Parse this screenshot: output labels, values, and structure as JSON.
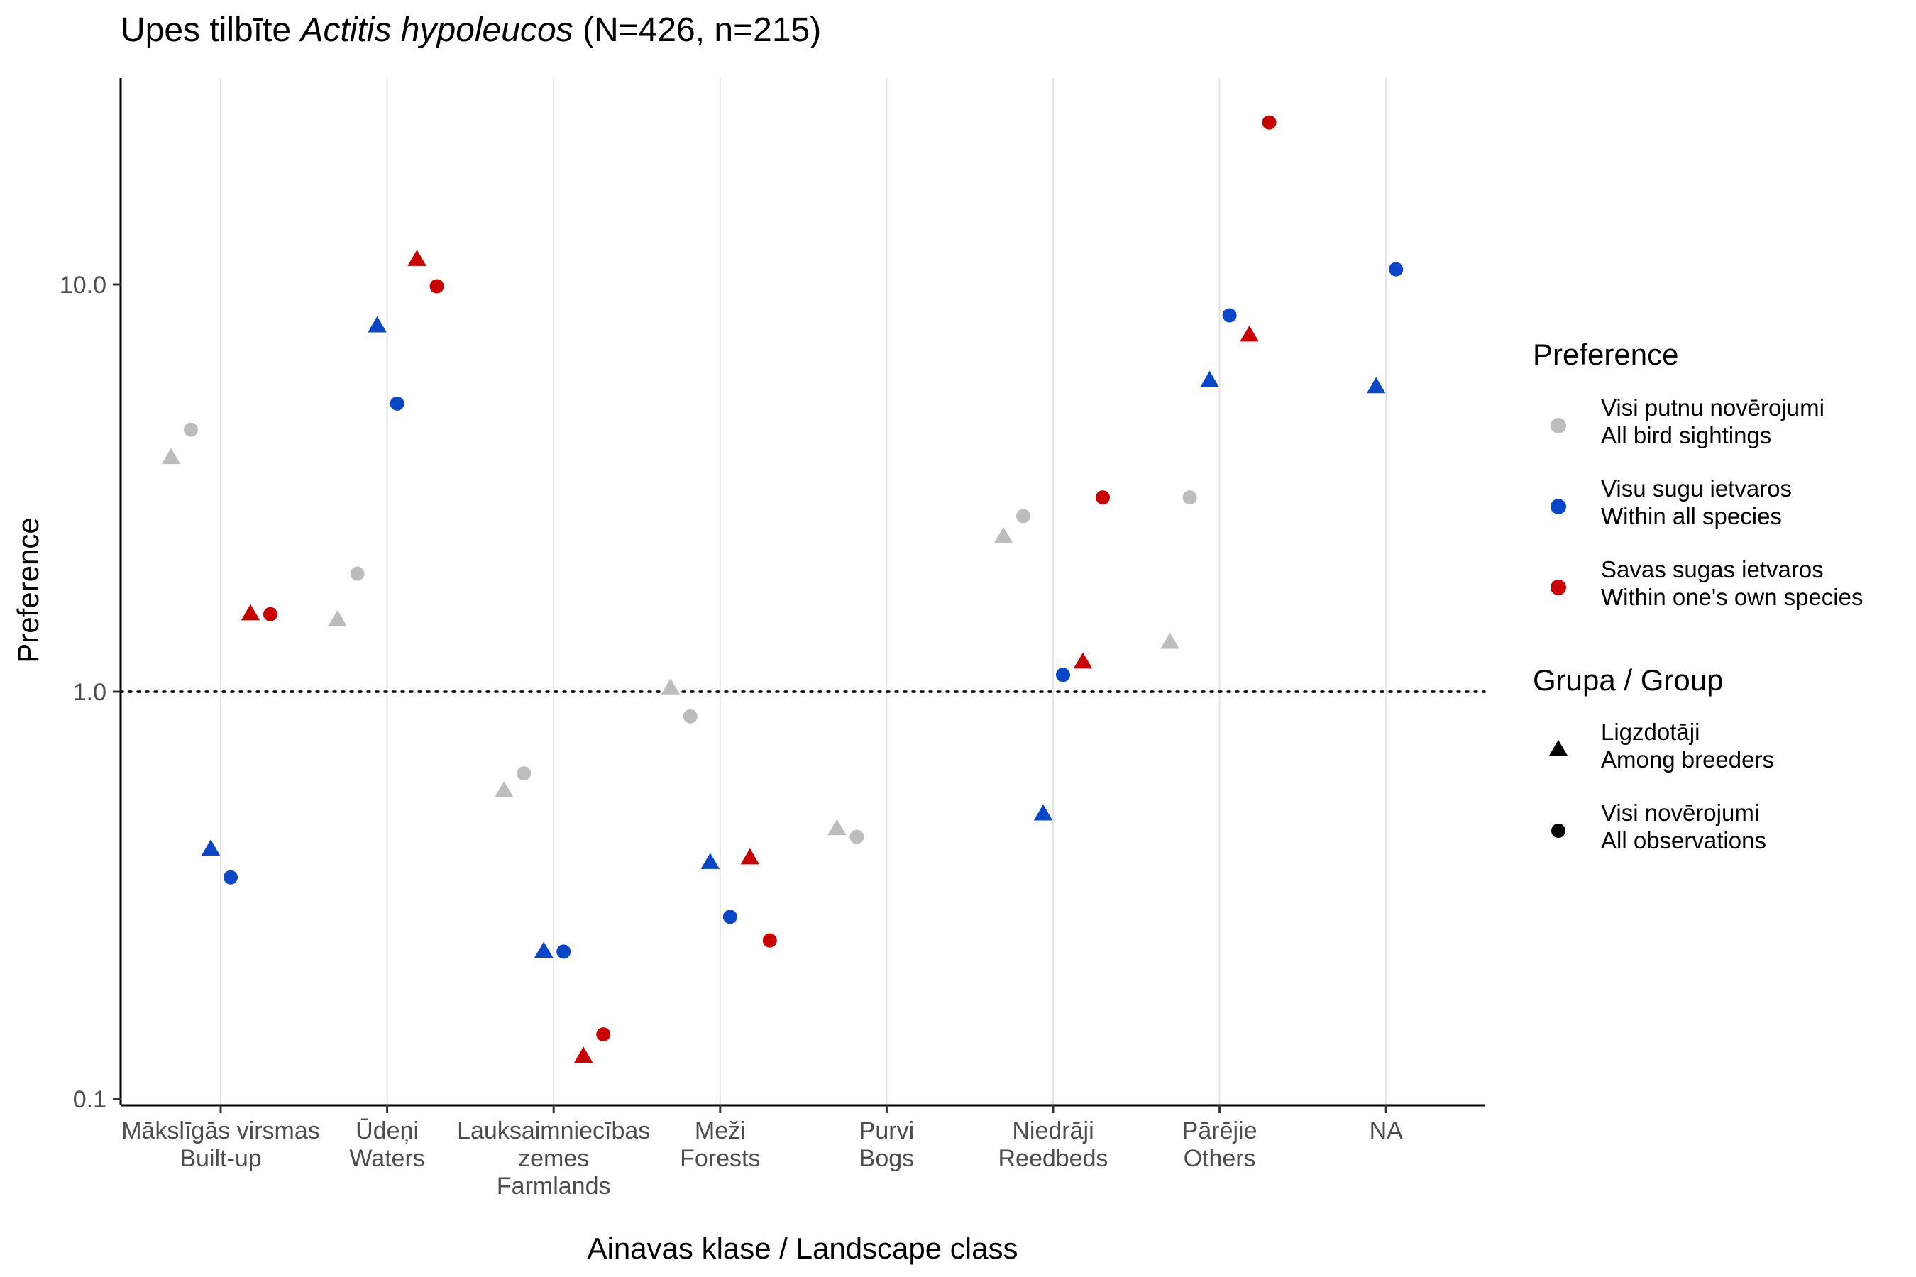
{
  "chart_data": {
    "type": "scatter",
    "title": {
      "prefix": "Upes tilbīte ",
      "species": "Actitis hypoleucos",
      "suffix": " (N=426, n=215)"
    },
    "xlabel": "Ainavas klase / Landscape class",
    "ylabel": "Preference",
    "y_scale": "log10",
    "ylim": [
      0.095,
      30
    ],
    "y_ticks": [
      {
        "value": 0.1,
        "label": "0.1"
      },
      {
        "value": 1,
        "label": "1.0"
      },
      {
        "value": 10,
        "label": "10.0"
      }
    ],
    "reference_line": {
      "value": 1,
      "style": "dotted"
    },
    "categories": [
      {
        "lines": [
          "Mākslīgās virsmas",
          "Built-up"
        ]
      },
      {
        "lines": [
          "Ūdeņi",
          "Waters"
        ]
      },
      {
        "lines": [
          "Lauksaimniecības",
          "zemes",
          "Farmlands"
        ]
      },
      {
        "lines": [
          "Meži",
          "Forests"
        ]
      },
      {
        "lines": [
          "Purvi",
          "Bogs"
        ]
      },
      {
        "lines": [
          "Niedrāji",
          "Reedbeds"
        ]
      },
      {
        "lines": [
          "Pārējie",
          "Others"
        ]
      },
      {
        "lines": [
          "NA"
        ]
      }
    ],
    "grid": {
      "vertical_major": true,
      "horizontal": false
    },
    "legend": {
      "placement": "right",
      "preference": {
        "title": "Preference",
        "items": [
          {
            "key": "all_birds",
            "line1": "Visi putnu novērojumi",
            "line2": "All bird sightings",
            "color": "#bdbdbd"
          },
          {
            "key": "all_species",
            "line1": "Visu sugu ietvaros",
            "line2": "Within all species",
            "color": "#0a47c8"
          },
          {
            "key": "own_species",
            "line1": "Savas sugas ietvaros",
            "line2": "Within one's own species",
            "color": "#c80000"
          }
        ]
      },
      "group": {
        "title": "Grupa / Group",
        "items": [
          {
            "key": "breeders",
            "line1": "Ligzdotāji",
            "line2": "Among breeders",
            "shape": "triangle"
          },
          {
            "key": "all_obs",
            "line1": "Visi novērojumi",
            "line2": "All observations",
            "shape": "circle"
          }
        ]
      }
    },
    "series": [
      {
        "preference": "all_birds",
        "group": "breeders",
        "values": [
          3.75,
          1.5,
          0.57,
          1.02,
          0.46,
          2.4,
          1.32,
          null
        ]
      },
      {
        "preference": "all_birds",
        "group": "all_obs",
        "values": [
          4.4,
          1.95,
          0.63,
          0.87,
          0.44,
          2.7,
          3.0,
          null
        ]
      },
      {
        "preference": "all_species",
        "group": "breeders",
        "values": [
          0.41,
          7.9,
          0.23,
          0.38,
          null,
          0.5,
          5.8,
          5.6
        ]
      },
      {
        "preference": "all_species",
        "group": "all_obs",
        "values": [
          0.35,
          5.1,
          0.23,
          0.28,
          null,
          1.1,
          8.4,
          10.9
        ]
      },
      {
        "preference": "own_species",
        "group": "breeders",
        "values": [
          1.55,
          11.5,
          0.127,
          0.39,
          null,
          1.18,
          7.5,
          null
        ]
      },
      {
        "preference": "own_species",
        "group": "all_obs",
        "values": [
          1.55,
          9.9,
          0.144,
          0.245,
          null,
          3.0,
          25,
          null
        ]
      }
    ]
  }
}
